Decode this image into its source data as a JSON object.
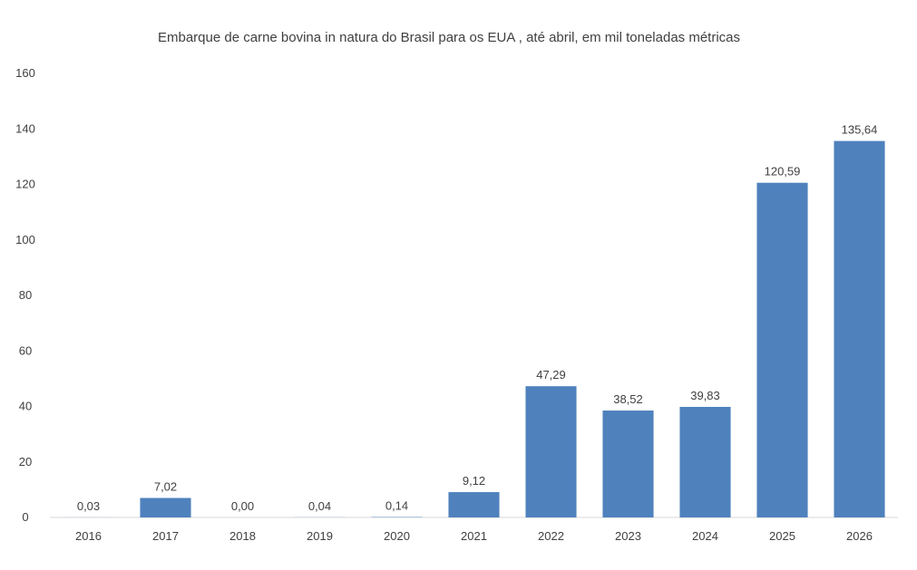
{
  "chart_data": {
    "type": "bar",
    "title": "Embarque de carne bovina in natura do Brasil para os EUA , até abril, em mil toneladas métricas",
    "categories": [
      "2016",
      "2017",
      "2018",
      "2019",
      "2020",
      "2021",
      "2022",
      "2023",
      "2024",
      "2025",
      "2026"
    ],
    "values": [
      0.03,
      7.02,
      0.0,
      0.04,
      0.14,
      9.12,
      47.29,
      38.52,
      39.83,
      120.59,
      135.64
    ],
    "data_labels": [
      "0,03",
      "7,02",
      "0,00",
      "0,04",
      "0,14",
      "9,12",
      "47,29",
      "38,52",
      "39,83",
      "120,59",
      "135,64"
    ],
    "ylim": [
      0,
      160
    ],
    "yticks": [
      0,
      20,
      40,
      60,
      80,
      100,
      120,
      140,
      160
    ],
    "xlabel": "",
    "ylabel": "",
    "grid": false,
    "legend": "none",
    "colors": {
      "bar": "#4f81bd",
      "text": "#404040",
      "axis": "#d9d9d9"
    }
  }
}
